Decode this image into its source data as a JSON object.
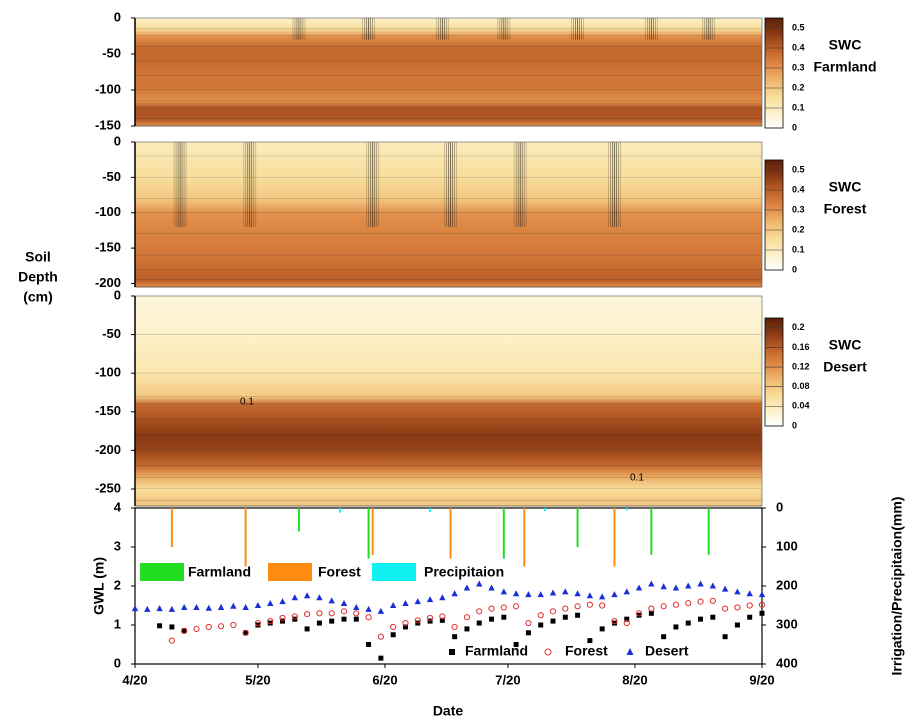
{
  "figure": {
    "ylabel_lines": [
      "Soil",
      "Depth",
      "(cm)"
    ],
    "colormap": [
      "#ffffff",
      "#fdf1c8",
      "#f8dc98",
      "#f0b870",
      "#e08a45",
      "#c0622a",
      "#8a3a14",
      "#5a200a"
    ]
  },
  "chart_data": [
    {
      "type": "contour",
      "colorbar_title": [
        "SWC",
        "Farmland"
      ],
      "ylim": [
        -150,
        0
      ],
      "yticks": [
        0,
        -50,
        -100,
        -150
      ],
      "colorbar_lim": [
        0,
        0.55
      ],
      "colorbar_ticks": [
        0,
        0.1,
        0.2,
        0.3,
        0.4,
        0.5
      ],
      "profile": {
        "depth": [
          0,
          -15,
          -25,
          -40,
          -60,
          -80,
          -100,
          -115,
          -125,
          -140,
          -150
        ],
        "values": [
          0.08,
          0.15,
          0.3,
          0.38,
          0.38,
          0.35,
          0.35,
          0.3,
          0.42,
          0.42,
          0.3
        ]
      },
      "wetting_fronts": {
        "x": [
          40,
          57,
          75,
          90,
          108,
          126,
          140
        ],
        "depth": [
          -30,
          -30,
          -30,
          -30,
          -30,
          -30,
          -30
        ]
      }
    },
    {
      "type": "contour",
      "colorbar_title": [
        "SWC",
        "Forest"
      ],
      "ylim": [
        -205,
        0
      ],
      "yticks": [
        0,
        -50,
        -100,
        -150,
        -200
      ],
      "colorbar_lim": [
        0,
        0.55
      ],
      "colorbar_ticks": [
        0,
        0.1,
        0.2,
        0.3,
        0.4,
        0.5
      ],
      "profile": {
        "depth": [
          0,
          -20,
          -50,
          -80,
          -100,
          -130,
          -160,
          -180,
          -195,
          -205
        ],
        "values": [
          0.1,
          0.12,
          0.15,
          0.2,
          0.3,
          0.33,
          0.35,
          0.38,
          0.4,
          0.3
        ]
      },
      "wetting_fronts": {
        "x": [
          11,
          28,
          58,
          77,
          94,
          117
        ],
        "depth": [
          -120,
          -120,
          -120,
          -120,
          -120,
          -120
        ]
      }
    },
    {
      "type": "contour",
      "colorbar_title": [
        "SWC",
        "Desert"
      ],
      "ylim": [
        -272,
        0
      ],
      "yticks": [
        0,
        -50,
        -100,
        -150,
        -200,
        -250
      ],
      "colorbar_lim": [
        0,
        0.22
      ],
      "colorbar_ticks": [
        0,
        0.04,
        0.08,
        0.12,
        0.16,
        0.2
      ],
      "profile": {
        "depth": [
          0,
          -50,
          -100,
          -130,
          -140,
          -160,
          -180,
          -200,
          -220,
          -235,
          -250,
          -265,
          -272
        ],
        "values": [
          0.02,
          0.03,
          0.05,
          0.08,
          0.15,
          0.17,
          0.19,
          0.18,
          0.15,
          0.1,
          0.06,
          0.08,
          0.08
        ]
      },
      "annotations": [
        "0.1",
        "0.1"
      ]
    },
    {
      "type": "scatter",
      "ylabel": "GWL (m)",
      "y2label": "Irrigation/Precipitaion(mm)",
      "xlabel": "Date",
      "xlim": [
        0,
        153
      ],
      "xticks": [
        {
          "value": 0,
          "label": "4/20"
        },
        {
          "value": 30,
          "label": "5/20"
        },
        {
          "value": 61,
          "label": "6/20"
        },
        {
          "value": 91,
          "label": "7/20"
        },
        {
          "value": 122,
          "label": "8/20"
        },
        {
          "value": 153,
          "label": "9/20"
        }
      ],
      "ylim": [
        0,
        4
      ],
      "yticks": [
        0,
        1,
        2,
        3,
        4
      ],
      "y2lim": [
        0,
        400
      ],
      "y2ticks": [
        0,
        100,
        200,
        300,
        400
      ],
      "x": [
        0,
        3,
        6,
        9,
        12,
        15,
        18,
        21,
        24,
        27,
        30,
        33,
        36,
        39,
        42,
        45,
        48,
        51,
        54,
        57,
        60,
        63,
        66,
        69,
        72,
        75,
        78,
        81,
        84,
        87,
        90,
        93,
        96,
        99,
        102,
        105,
        108,
        111,
        114,
        117,
        120,
        123,
        126,
        129,
        132,
        135,
        138,
        141,
        144,
        147,
        150,
        153
      ],
      "series": [
        {
          "name": "Farmland",
          "color": "#000000",
          "marker": "square",
          "values": [
            null,
            null,
            0.98,
            0.95,
            0.85,
            null,
            null,
            null,
            null,
            0.8,
            1.0,
            1.05,
            1.1,
            1.15,
            0.9,
            1.05,
            1.1,
            1.15,
            1.15,
            0.5,
            0.15,
            0.75,
            0.95,
            1.05,
            1.1,
            1.12,
            0.7,
            0.9,
            1.05,
            1.15,
            1.2,
            0.5,
            0.8,
            1.0,
            1.1,
            1.2,
            1.25,
            0.6,
            0.9,
            1.05,
            1.15,
            1.25,
            1.3,
            0.7,
            0.95,
            1.05,
            1.15,
            1.2,
            0.7,
            1.0,
            1.2,
            1.3
          ]
        },
        {
          "name": "Forest",
          "color": "#e03030",
          "marker": "circle",
          "values": [
            null,
            null,
            null,
            0.6,
            0.85,
            0.9,
            0.95,
            0.97,
            1.0,
            0.8,
            1.05,
            1.1,
            1.18,
            1.22,
            1.28,
            1.3,
            1.3,
            1.35,
            1.3,
            1.2,
            0.7,
            0.95,
            1.05,
            1.12,
            1.18,
            1.22,
            0.95,
            1.2,
            1.35,
            1.42,
            1.45,
            1.48,
            1.05,
            1.25,
            1.35,
            1.42,
            1.48,
            1.52,
            1.5,
            1.1,
            1.05,
            1.3,
            1.42,
            1.48,
            1.52,
            1.56,
            1.6,
            1.62,
            1.42,
            1.45,
            1.5,
            1.52
          ]
        },
        {
          "name": "Desert",
          "color": "#1a2fd6",
          "marker": "triangle",
          "values": [
            1.42,
            1.4,
            1.42,
            1.4,
            1.45,
            1.45,
            1.43,
            1.45,
            1.48,
            1.45,
            1.5,
            1.55,
            1.6,
            1.7,
            1.75,
            1.7,
            1.62,
            1.55,
            1.45,
            1.4,
            1.35,
            1.5,
            1.55,
            1.6,
            1.65,
            1.7,
            1.8,
            1.95,
            2.05,
            1.95,
            1.85,
            1.8,
            1.78,
            1.78,
            1.82,
            1.85,
            1.8,
            1.75,
            1.72,
            1.78,
            1.85,
            1.95,
            2.05,
            1.98,
            1.95,
            2.0,
            2.05,
            2.0,
            1.92,
            1.85,
            1.8,
            1.78
          ]
        }
      ],
      "bars": [
        {
          "name": "Farmland",
          "color": "#22dd22",
          "x": [
            40,
            57,
            90,
            108,
            126,
            140
          ],
          "values": [
            60,
            130,
            130,
            100,
            120,
            120
          ]
        },
        {
          "name": "Forest",
          "color": "#ff8c10",
          "x": [
            9,
            27,
            58,
            77,
            95,
            117
          ],
          "values": [
            100,
            150,
            120,
            130,
            150,
            150
          ]
        },
        {
          "name": "Precipitaion",
          "color": "#10f0f0",
          "x": [
            50,
            72,
            100,
            120
          ],
          "values": [
            12,
            10,
            8,
            6
          ]
        }
      ]
    }
  ]
}
